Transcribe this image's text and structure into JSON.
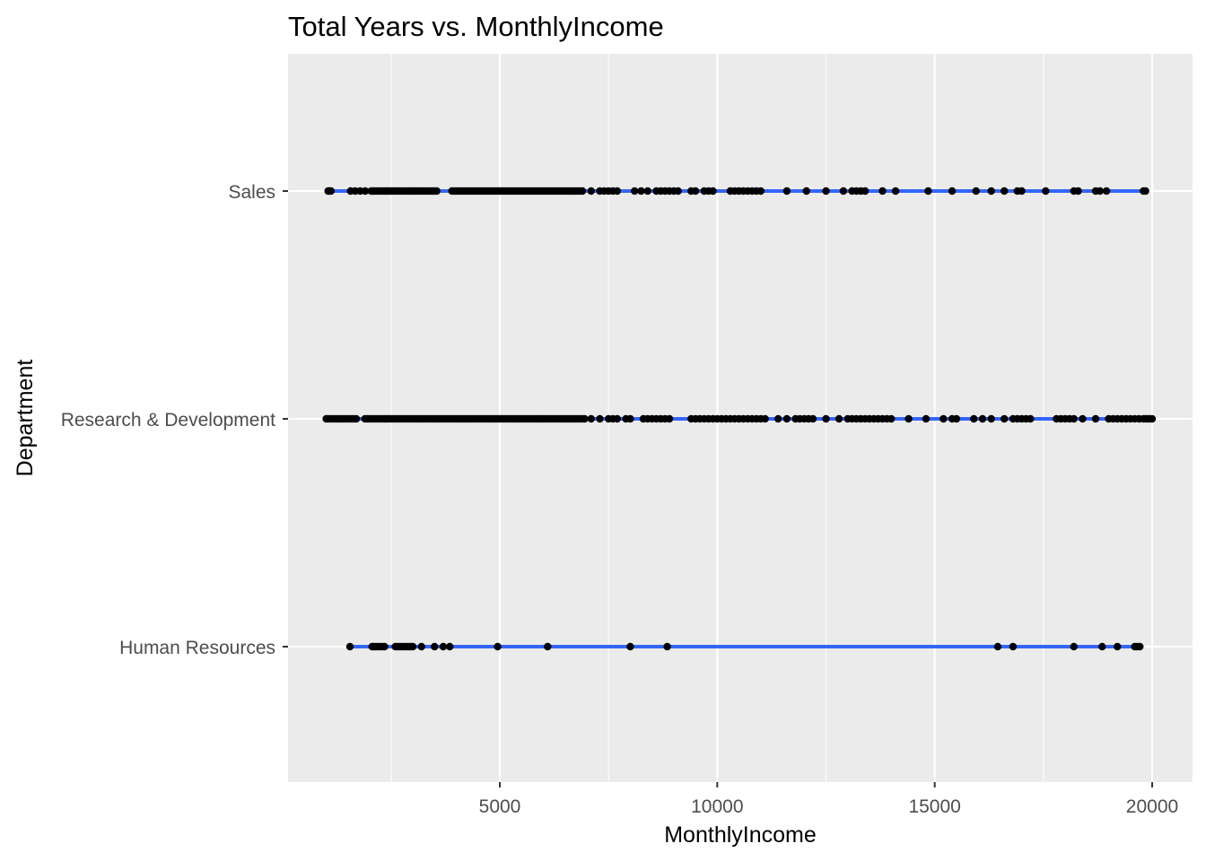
{
  "chart_data": {
    "type": "scatter",
    "title": "Total Years vs. MonthlyIncome",
    "xlabel": "MonthlyIncome",
    "ylabel": "Department",
    "xlim": [
      0,
      21000
    ],
    "x_ticks": [
      5000,
      10000,
      15000,
      20000
    ],
    "x_tick_labels": [
      "5000",
      "10000",
      "15000",
      "20000"
    ],
    "categories": [
      "Human Resources",
      "Research & Development",
      "Sales"
    ],
    "grid": true,
    "panel_background": "#ebebeb",
    "point_color": "#000000",
    "line_color": "#3366ff",
    "series": [
      {
        "category": "Sales",
        "fit_range": [
          1052,
          19847
        ],
        "x": [
          1052,
          1081,
          1118,
          1569,
          1675,
          1790,
          1904,
          2042,
          2086,
          2121,
          2166,
          2220,
          2275,
          2310,
          2362,
          2404,
          2451,
          2503,
          2550,
          2598,
          2641,
          2693,
          2745,
          2790,
          2840,
          2886,
          2932,
          2980,
          3027,
          3071,
          3118,
          3160,
          3212,
          3260,
          3310,
          3359,
          3407,
          3452,
          3500,
          3550,
          3900,
          3950,
          4000,
          4050,
          4100,
          4150,
          4200,
          4250,
          4300,
          4350,
          4400,
          4450,
          4500,
          4550,
          4600,
          4650,
          4700,
          4750,
          4800,
          4850,
          4900,
          4950,
          5000,
          5050,
          5100,
          5150,
          5200,
          5250,
          5300,
          5350,
          5400,
          5450,
          5500,
          5550,
          5600,
          5650,
          5700,
          5750,
          5800,
          5850,
          5900,
          5950,
          6000,
          6050,
          6100,
          6150,
          6200,
          6250,
          6300,
          6350,
          6400,
          6450,
          6500,
          6550,
          6600,
          6650,
          6700,
          6750,
          6800,
          6850,
          6900,
          7100,
          7300,
          7400,
          7500,
          7600,
          7700,
          8100,
          8250,
          8400,
          8600,
          8700,
          8800,
          8900,
          9000,
          9100,
          9400,
          9500,
          9700,
          9800,
          9900,
          10300,
          10400,
          10500,
          10600,
          10700,
          10800,
          10900,
          11000,
          11600,
          12050,
          12500,
          12900,
          13100,
          13200,
          13300,
          13400,
          13800,
          14100,
          14850,
          15400,
          15950,
          16300,
          16600,
          16900,
          17000,
          17550,
          18200,
          18300,
          18700,
          18800,
          18950,
          19800,
          19847
        ]
      },
      {
        "category": "Research & Development",
        "fit_range": [
          1009,
          19999
        ],
        "x": [
          1009,
          1051,
          1102,
          1152,
          1200,
          1252,
          1300,
          1350,
          1400,
          1450,
          1500,
          1550,
          1600,
          1650,
          1700,
          1900,
          1950,
          2000,
          2050,
          2100,
          2150,
          2200,
          2250,
          2300,
          2350,
          2400,
          2450,
          2500,
          2550,
          2600,
          2650,
          2700,
          2750,
          2800,
          2850,
          2900,
          2950,
          3000,
          3050,
          3100,
          3150,
          3200,
          3250,
          3300,
          3350,
          3400,
          3450,
          3500,
          3550,
          3600,
          3650,
          3700,
          3750,
          3800,
          3850,
          3900,
          3950,
          4000,
          4050,
          4100,
          4150,
          4200,
          4250,
          4300,
          4350,
          4400,
          4450,
          4500,
          4550,
          4600,
          4650,
          4700,
          4750,
          4800,
          4850,
          4900,
          4950,
          5000,
          5050,
          5100,
          5150,
          5200,
          5250,
          5300,
          5350,
          5400,
          5450,
          5500,
          5550,
          5600,
          5650,
          5700,
          5750,
          5800,
          5850,
          5900,
          5950,
          6000,
          6050,
          6100,
          6150,
          6200,
          6250,
          6300,
          6350,
          6400,
          6450,
          6500,
          6550,
          6600,
          6650,
          6700,
          6750,
          6800,
          6850,
          6900,
          6950,
          7100,
          7300,
          7500,
          7600,
          7700,
          7900,
          8000,
          8300,
          8400,
          8500,
          8600,
          8700,
          8800,
          8900,
          9400,
          9500,
          9600,
          9700,
          9800,
          9900,
          10000,
          10100,
          10200,
          10300,
          10400,
          10500,
          10600,
          10700,
          10800,
          10900,
          11000,
          11100,
          11400,
          11600,
          11800,
          11900,
          12000,
          12100,
          12200,
          12500,
          12800,
          13000,
          13100,
          13200,
          13300,
          13400,
          13500,
          13600,
          13700,
          13800,
          13900,
          14000,
          14400,
          14800,
          15200,
          15400,
          15500,
          15900,
          16100,
          16300,
          16600,
          16800,
          16900,
          17000,
          17100,
          17200,
          17800,
          17900,
          18000,
          18100,
          18200,
          18400,
          18700,
          19000,
          19100,
          19200,
          19300,
          19400,
          19500,
          19600,
          19700,
          19800,
          19850,
          19900,
          19950,
          19999
        ]
      },
      {
        "category": "Human Resources",
        "fit_range": [
          1555,
          19717
        ],
        "x": [
          1555,
          2064,
          2100,
          2150,
          2200,
          2250,
          2300,
          2350,
          2600,
          2650,
          2700,
          2750,
          2800,
          2850,
          2900,
          2950,
          3000,
          3200,
          3500,
          3700,
          3850,
          4950,
          6100,
          8000,
          8850,
          16450,
          16800,
          18200,
          18850,
          19200,
          19600,
          19650,
          19717
        ]
      }
    ]
  }
}
